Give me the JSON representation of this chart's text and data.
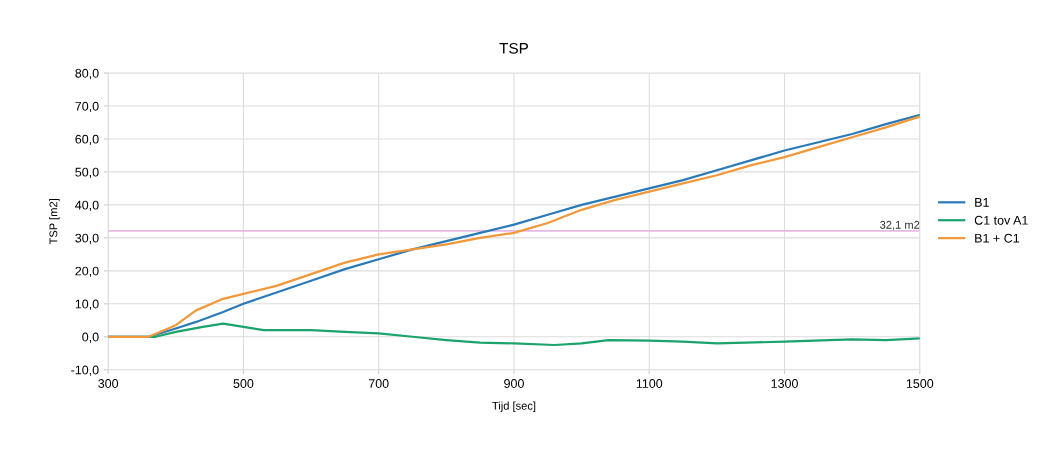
{
  "chart_data": {
    "type": "line",
    "title": "TSP",
    "xlabel": "Tijd [sec]",
    "ylabel": "TSP [m2]",
    "xlim": [
      300,
      1500
    ],
    "xticks": [
      300,
      500,
      700,
      900,
      1100,
      1300,
      1500
    ],
    "ylim": [
      -10,
      80
    ],
    "yticks": [
      {
        "value": -10,
        "label": "-10,0"
      },
      {
        "value": 0,
        "label": "0,0"
      },
      {
        "value": 10,
        "label": "10,0"
      },
      {
        "value": 20,
        "label": "20,0"
      },
      {
        "value": 30,
        "label": "30,0"
      },
      {
        "value": 40,
        "label": "40,0"
      },
      {
        "value": 50,
        "label": "50,0"
      },
      {
        "value": 60,
        "label": "60,0"
      },
      {
        "value": 70,
        "label": "70,0"
      },
      {
        "value": 80,
        "label": "80,0"
      }
    ],
    "grid": true,
    "legend": "right",
    "marker": "none",
    "line_style": "solid",
    "ref_lines": [
      {
        "axis": "y",
        "value": 32.1,
        "label": "32,1 m2",
        "color": "#e6b8e6"
      }
    ],
    "series": [
      {
        "name": "B1",
        "color": "#2a7ab8",
        "x": [
          300,
          360,
          400,
          430,
          470,
          500,
          550,
          600,
          650,
          700,
          750,
          800,
          850,
          900,
          950,
          1000,
          1050,
          1100,
          1150,
          1200,
          1250,
          1300,
          1350,
          1400,
          1450,
          1500
        ],
        "values": [
          0,
          0,
          2.5,
          4.5,
          7.5,
          10,
          13.5,
          17,
          20.5,
          23.5,
          26.5,
          29,
          31.5,
          34,
          37,
          40,
          42.5,
          45,
          47.5,
          50.5,
          53.5,
          56.5,
          59,
          61.5,
          64.5,
          67.3
        ]
      },
      {
        "name": "C1 tov A1",
        "color": "#1aa36b",
        "x": [
          300,
          370,
          400,
          440,
          470,
          500,
          530,
          600,
          650,
          700,
          750,
          800,
          850,
          900,
          960,
          1000,
          1040,
          1100,
          1150,
          1200,
          1300,
          1400,
          1450,
          1500
        ],
        "values": [
          0,
          0,
          1.5,
          3,
          4,
          3,
          2,
          2,
          1.5,
          1,
          0,
          -1,
          -1.8,
          -2,
          -2.5,
          -2,
          -1,
          -1.2,
          -1.5,
          -2,
          -1.5,
          -0.8,
          -1,
          -0.5
        ]
      },
      {
        "name": "B1 + C1",
        "color": "#f0983a",
        "x": [
          300,
          360,
          400,
          430,
          470,
          500,
          550,
          600,
          650,
          700,
          750,
          800,
          850,
          900,
          950,
          1000,
          1050,
          1100,
          1150,
          1200,
          1250,
          1300,
          1350,
          1400,
          1450,
          1500
        ],
        "values": [
          0,
          0,
          3.5,
          8,
          11.5,
          13,
          15.5,
          19,
          22.5,
          25,
          26.5,
          28,
          30,
          31.5,
          34.5,
          38.5,
          41.5,
          44,
          46.5,
          49,
          52,
          54.5,
          57.5,
          60.5,
          63.5,
          66.8
        ]
      }
    ]
  }
}
